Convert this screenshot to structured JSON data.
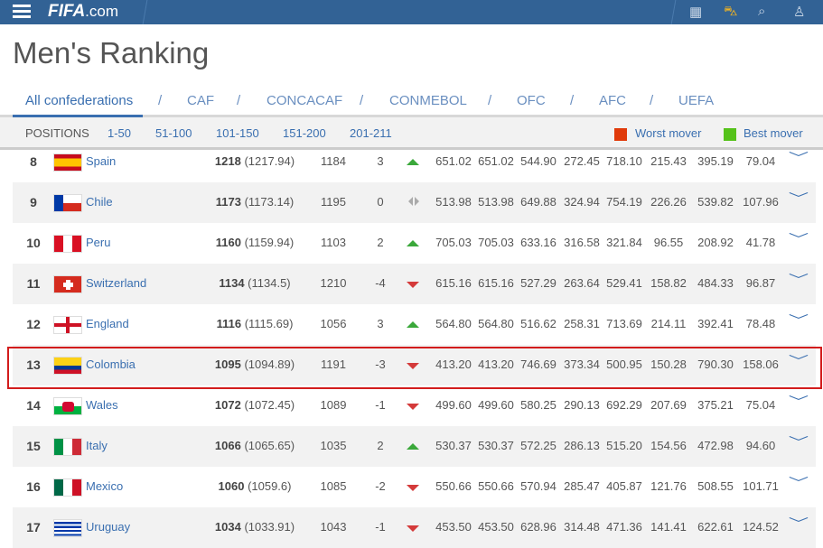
{
  "header": {
    "logo": "FIFA",
    "logo_suffix": ".com",
    "icons": [
      "calendar-icon",
      "cart-icon",
      "search-icon",
      "user-icon"
    ]
  },
  "page_title": "Men's Ranking",
  "confederations": [
    "All confederations",
    "CAF",
    "CONCACAF",
    "CONMEBOL",
    "OFC",
    "AFC",
    "UEFA"
  ],
  "positions": {
    "label": "POSITIONS",
    "ranges": [
      "1-50",
      "51-100",
      "101-150",
      "151-200",
      "201-211"
    ]
  },
  "legend": {
    "worst": "Worst mover",
    "worst_color": "#e03a0a",
    "best": "Best mover",
    "best_color": "#55c21a"
  },
  "rows": [
    {
      "rank": "8",
      "team": "Spain",
      "pts": "1218",
      "pts_exact": "(1217.94)",
      "prev": "1184",
      "change": "3",
      "trend": "up",
      "vals": [
        "651.02",
        "651.02",
        "544.90",
        "272.45",
        "718.10",
        "215.43",
        "395.19",
        "79.04"
      ]
    },
    {
      "rank": "9",
      "team": "Chile",
      "pts": "1173",
      "pts_exact": "(1173.14)",
      "prev": "1195",
      "change": "0",
      "trend": "same",
      "vals": [
        "513.98",
        "513.98",
        "649.88",
        "324.94",
        "754.19",
        "226.26",
        "539.82",
        "107.96"
      ]
    },
    {
      "rank": "10",
      "team": "Peru",
      "pts": "1160",
      "pts_exact": "(1159.94)",
      "prev": "1103",
      "change": "2",
      "trend": "up",
      "vals": [
        "705.03",
        "705.03",
        "633.16",
        "316.58",
        "321.84",
        "96.55",
        "208.92",
        "41.78"
      ]
    },
    {
      "rank": "11",
      "team": "Switzerland",
      "pts": "1134",
      "pts_exact": "(1134.5)",
      "prev": "1210",
      "change": "-4",
      "trend": "down",
      "vals": [
        "615.16",
        "615.16",
        "527.29",
        "263.64",
        "529.41",
        "158.82",
        "484.33",
        "96.87"
      ]
    },
    {
      "rank": "12",
      "team": "England",
      "pts": "1116",
      "pts_exact": "(1115.69)",
      "prev": "1056",
      "change": "3",
      "trend": "up",
      "vals": [
        "564.80",
        "564.80",
        "516.62",
        "258.31",
        "713.69",
        "214.11",
        "392.41",
        "78.48"
      ]
    },
    {
      "rank": "13",
      "team": "Colombia",
      "pts": "1095",
      "pts_exact": "(1094.89)",
      "prev": "1191",
      "change": "-3",
      "trend": "down",
      "vals": [
        "413.20",
        "413.20",
        "746.69",
        "373.34",
        "500.95",
        "150.28",
        "790.30",
        "158.06"
      ]
    },
    {
      "rank": "14",
      "team": "Wales",
      "pts": "1072",
      "pts_exact": "(1072.45)",
      "prev": "1089",
      "change": "-1",
      "trend": "down",
      "vals": [
        "499.60",
        "499.60",
        "580.25",
        "290.13",
        "692.29",
        "207.69",
        "375.21",
        "75.04"
      ]
    },
    {
      "rank": "15",
      "team": "Italy",
      "pts": "1066",
      "pts_exact": "(1065.65)",
      "prev": "1035",
      "change": "2",
      "trend": "up",
      "vals": [
        "530.37",
        "530.37",
        "572.25",
        "286.13",
        "515.20",
        "154.56",
        "472.98",
        "94.60"
      ]
    },
    {
      "rank": "16",
      "team": "Mexico",
      "pts": "1060",
      "pts_exact": "(1059.6)",
      "prev": "1085",
      "change": "-2",
      "trend": "down",
      "vals": [
        "550.66",
        "550.66",
        "570.94",
        "285.47",
        "405.87",
        "121.76",
        "508.55",
        "101.71"
      ]
    },
    {
      "rank": "17",
      "team": "Uruguay",
      "pts": "1034",
      "pts_exact": "(1033.91)",
      "prev": "1043",
      "change": "-1",
      "trend": "down",
      "vals": [
        "453.50",
        "453.50",
        "628.96",
        "314.48",
        "471.36",
        "141.41",
        "622.61",
        "124.52"
      ]
    }
  ]
}
